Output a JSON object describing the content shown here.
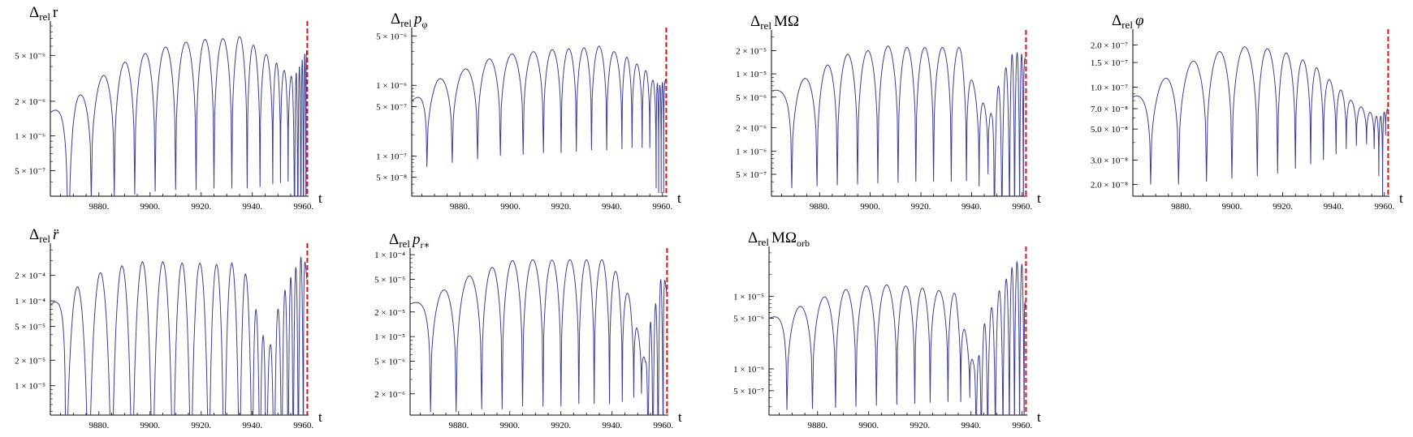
{
  "figure": {
    "x_axis_label": "t",
    "x_tick_labels": [
      "9880.",
      "9900.",
      "9920.",
      "9940.",
      "9960."
    ]
  },
  "colors": {
    "curve": "#3b3f96",
    "merger_line": "#dd1111",
    "axis": "#000000"
  },
  "chart_data": [
    {
      "type": "line",
      "scale": "log",
      "title_prefix": "Δ",
      "title_sub": "rel",
      "title_main": "r",
      "title_main_italic": false,
      "title_main_sub": "",
      "xlabel": "t",
      "xlim": [
        9861,
        9962
      ],
      "ylim": [
        3e-07,
        9e-06
      ],
      "event_t": 9961.5,
      "yticks": [
        {
          "v": 5e-06,
          "label": "5 × 10⁻⁶"
        },
        {
          "v": 2e-06,
          "label": "2 × 10⁻⁶"
        },
        {
          "v": 1e-06,
          "label": "1 × 10⁻⁶"
        },
        {
          "v": 5e-07,
          "label": "5 × 10⁻⁷"
        }
      ],
      "envelope": {
        "peaks": [
          [
            9861,
            1.6e-06
          ],
          [
            9873,
            2.3e-06
          ],
          [
            9882,
            3.4e-06
          ],
          [
            9891,
            4.5e-06
          ],
          [
            9899,
            5.3e-06
          ],
          [
            9907,
            6e-06
          ],
          [
            9915,
            6.6e-06
          ],
          [
            9922,
            6.9e-06
          ],
          [
            9929,
            7e-06
          ],
          [
            9936,
            7.3e-06
          ],
          [
            9941,
            6e-06
          ],
          [
            9946,
            5e-06
          ],
          [
            9950,
            4.2e-06
          ],
          [
            9953,
            3.6e-06
          ],
          [
            9956,
            3.2e-06
          ],
          [
            9958,
            3.8e-06
          ],
          [
            9961,
            5.5e-06
          ]
        ],
        "trough_t": [
          9868,
          9877,
          9886,
          9894,
          9902,
          9910,
          9918,
          9925,
          9932,
          9938,
          9943,
          9948,
          9951,
          9954,
          9956.5,
          9957.8,
          9959,
          9960,
          9961
        ],
        "trough_v": [
          1e-08,
          2.8e-07,
          3e-07,
          3.1e-07,
          3.3e-07,
          3.4e-07,
          3.4e-07,
          3.5e-07,
          3.5e-07,
          3.5e-07,
          3.6e-07,
          3.8e-07,
          3.9e-07,
          4e-07,
          1e-08,
          1e-08,
          1e-08,
          1e-08,
          1e-08
        ]
      }
    },
    {
      "type": "line",
      "scale": "log",
      "title_prefix": "Δ",
      "title_sub": "rel",
      "title_main": "p",
      "title_main_italic": true,
      "title_main_sub": "φ",
      "xlabel": "t",
      "xlim": [
        9861,
        9962
      ],
      "ylim": [
        2.7e-08,
        5.6e-06
      ],
      "event_t": 9961.5,
      "yticks": [
        {
          "v": 5e-06,
          "label": "5 × 10⁻⁶"
        },
        {
          "v": 1e-06,
          "label": "1 × 10⁻⁶"
        },
        {
          "v": 5e-07,
          "label": "5 × 10⁻⁷"
        },
        {
          "v": 1e-07,
          "label": "1 × 10⁻⁷"
        },
        {
          "v": 5e-08,
          "label": "5 × 10⁻⁸"
        }
      ],
      "envelope": {
        "peaks": [
          [
            9861,
            6e-07
          ],
          [
            9871,
            1.2e-06
          ],
          [
            9882,
            1.7e-06
          ],
          [
            9892,
            2.4e-06
          ],
          [
            9901,
            2.8e-06
          ],
          [
            9909,
            3e-06
          ],
          [
            9916,
            3.2e-06
          ],
          [
            9923,
            3.3e-06
          ],
          [
            9929,
            3.4e-06
          ],
          [
            9935,
            3.6e-06
          ],
          [
            9941,
            3e-06
          ],
          [
            9946,
            2.5e-06
          ],
          [
            9950,
            2e-06
          ],
          [
            9953,
            1.7e-06
          ],
          [
            9956,
            1.2e-06
          ],
          [
            9959,
            1e-06
          ],
          [
            9961,
            1.2e-06
          ]
        ],
        "trough_t": [
          9867,
          9877,
          9887,
          9896,
          9905,
          9913,
          9920,
          9926,
          9932,
          9938,
          9944,
          9948,
          9952,
          9955,
          9957.5,
          9958.5,
          9959.5,
          9960.5
        ],
        "trough_v": [
          7e-08,
          8e-08,
          9e-08,
          1e-07,
          1.05e-07,
          1.1e-07,
          1.1e-07,
          1.15e-07,
          1.2e-07,
          1.2e-07,
          1.25e-07,
          1.3e-07,
          1.3e-07,
          1.3e-07,
          3.5e-08,
          3e-08,
          3e-08,
          3e-08
        ]
      }
    },
    {
      "type": "line",
      "scale": "log",
      "title_prefix": "Δ",
      "title_sub": "rel",
      "title_main": "MΩ",
      "title_main_italic": false,
      "title_main_sub": "",
      "xlabel": "t",
      "xlim": [
        9861,
        9962
      ],
      "ylim": [
        2.6e-07,
        3.2e-05
      ],
      "event_t": 9961.5,
      "yticks": [
        {
          "v": 2e-05,
          "label": "2 × 10⁻⁵"
        },
        {
          "v": 1e-05,
          "label": "1 × 10⁻⁵"
        },
        {
          "v": 5e-06,
          "label": "5 × 10⁻⁶"
        },
        {
          "v": 2e-06,
          "label": "2 × 10⁻⁶"
        },
        {
          "v": 1e-06,
          "label": "1 × 10⁻⁶"
        },
        {
          "v": 5e-07,
          "label": "5 × 10⁻⁷"
        }
      ],
      "envelope": {
        "peaks": [
          [
            9861,
            6e-06
          ],
          [
            9866,
            6.5e-06
          ],
          [
            9875,
            9e-06
          ],
          [
            9883,
            1.3e-05
          ],
          [
            9891,
            1.8e-05
          ],
          [
            9899,
            2e-05
          ],
          [
            9907,
            2.3e-05
          ],
          [
            9915,
            2.2e-05
          ],
          [
            9922,
            2.2e-05
          ],
          [
            9929,
            2.2e-05
          ],
          [
            9936,
            2.2e-05
          ],
          [
            9941,
            7e-06
          ],
          [
            9945,
            4e-06
          ],
          [
            9948,
            3e-06
          ],
          [
            9951,
            8e-06
          ],
          [
            9954,
            1.3e-05
          ],
          [
            9956,
            1.8e-05
          ],
          [
            9958,
            1.9e-05
          ],
          [
            9960,
            1.8e-05
          ],
          [
            9961.3,
            1.6e-05
          ]
        ],
        "trough_t": [
          9869,
          9879,
          9887,
          9895,
          9903,
          9911,
          9918,
          9925,
          9932,
          9938,
          9943,
          9946.5,
          9949,
          9952,
          9955,
          9957,
          9959,
          9960.5
        ],
        "trough_v": [
          3.3e-07,
          3.5e-07,
          3.6e-07,
          3.7e-07,
          3.8e-07,
          3.9e-07,
          4e-07,
          4e-07,
          4e-07,
          4.1e-07,
          3.5e-07,
          5e-07,
          1e-08,
          1e-08,
          1e-08,
          1e-08,
          1e-08,
          1e-08
        ]
      }
    },
    {
      "type": "line",
      "scale": "log",
      "title_prefix": "Δ",
      "title_sub": "rel",
      "title_main": "φ",
      "title_main_italic": true,
      "title_main_sub": "",
      "xlabel": "t",
      "xlim": [
        9861,
        9962
      ],
      "ylim": [
        1.65e-08,
        2.4e-07
      ],
      "event_t": 9961.5,
      "yticks": [
        {
          "v": 2e-07,
          "label": "2.0 × 10⁻⁷"
        },
        {
          "v": 1.5e-07,
          "label": "1.5 × 10⁻⁷"
        },
        {
          "v": 1e-07,
          "label": "1.0 × 10⁻⁷"
        },
        {
          "v": 7e-08,
          "label": "7.0 × 10⁻⁸"
        },
        {
          "v": 5e-08,
          "label": "5.0 × 10⁻⁸"
        },
        {
          "v": 3e-08,
          "label": "3.0 × 10⁻⁸"
        },
        {
          "v": 2e-08,
          "label": "2.0 × 10⁻⁸"
        }
      ],
      "envelope": {
        "peaks": [
          [
            9861,
            8.5e-08
          ],
          [
            9865,
            9e-08
          ],
          [
            9875,
            1.2e-07
          ],
          [
            9885,
            1.55e-07
          ],
          [
            9895,
            1.8e-07
          ],
          [
            9905,
            1.95e-07
          ],
          [
            9913,
            1.9e-07
          ],
          [
            9920,
            1.8e-07
          ],
          [
            9927,
            1.6e-07
          ],
          [
            9933,
            1.4e-07
          ],
          [
            9938,
            1.15e-07
          ],
          [
            9943,
            9.5e-08
          ],
          [
            9947,
            8e-08
          ],
          [
            9951,
            7.2e-08
          ],
          [
            9955,
            6.5e-08
          ],
          [
            9958,
            6e-08
          ],
          [
            9961,
            7e-08
          ]
        ],
        "trough_t": [
          9868,
          9879,
          9890,
          9900,
          9910,
          9918,
          9925,
          9931,
          9936,
          9941,
          9945,
          9949,
          9953,
          9956,
          9957.8,
          9959.3,
          9960.5
        ],
        "trough_v": [
          2e-08,
          2e-08,
          2.1e-08,
          2.2e-08,
          2.3e-08,
          2.4e-08,
          2.6e-08,
          2.8e-08,
          3e-08,
          3.3e-08,
          3.6e-08,
          3.8e-08,
          3.9e-08,
          3.6e-08,
          2.3e-08,
          1.5e-08,
          4.5e-08
        ]
      }
    },
    {
      "type": "line",
      "scale": "log",
      "title_prefix": "Δ",
      "title_sub": "rel",
      "title_main": "r̈",
      "title_main_italic": true,
      "title_main_sub": "",
      "xlabel": "t",
      "xlim": [
        9861,
        9962
      ],
      "ylim": [
        4.5e-06,
        0.00042
      ],
      "event_t": 9961.5,
      "yticks": [
        {
          "v": 0.0002,
          "label": "2 × 10⁻⁴"
        },
        {
          "v": 0.0001,
          "label": "1 × 10⁻⁴"
        },
        {
          "v": 5e-05,
          "label": "5 × 10⁻⁵"
        },
        {
          "v": 2e-05,
          "label": "2 × 10⁻⁵"
        },
        {
          "v": 1e-05,
          "label": "1 × 10⁻⁵"
        }
      ],
      "envelope": {
        "peaks": [
          [
            9861,
            9e-05
          ],
          [
            9863,
            0.0001
          ],
          [
            9872,
            0.00015
          ],
          [
            9881,
            0.00022
          ],
          [
            9889,
            0.00026
          ],
          [
            9897,
            0.00029
          ],
          [
            9905,
            0.00029
          ],
          [
            9912,
            0.00028
          ],
          [
            9919,
            0.00028
          ],
          [
            9926,
            0.00027
          ],
          [
            9932,
            0.00028
          ],
          [
            9937,
            0.00023
          ],
          [
            9941,
            9e-05
          ],
          [
            9944,
            4e-05
          ],
          [
            9947,
            3e-05
          ],
          [
            9950,
            8e-05
          ],
          [
            9953,
            0.00014
          ],
          [
            9955,
            0.00019
          ],
          [
            9957,
            0.00025
          ],
          [
            9959,
            0.00033
          ],
          [
            9960.5,
            0.00036
          ],
          [
            9961.3,
            0.00018
          ]
        ],
        "trough_t": [
          9867,
          9876,
          9885,
          9893,
          9901,
          9909,
          9916,
          9923,
          9929,
          9935,
          9940,
          9943,
          9945.5,
          9948.5,
          9951.5,
          9954,
          9956,
          9958,
          9960
        ],
        "trough_v": [
          1e-08,
          1e-08,
          1e-08,
          1e-08,
          1e-08,
          1e-08,
          1e-08,
          1e-08,
          1e-08,
          1e-08,
          1e-08,
          1e-08,
          1e-08,
          1e-08,
          1e-08,
          1e-08,
          1e-08,
          1e-08,
          1e-08
        ]
      }
    },
    {
      "type": "line",
      "scale": "log",
      "title_prefix": "Δ",
      "title_sub": "rel",
      "title_main": "p",
      "title_main_italic": true,
      "title_main_sub": "r∗",
      "xlabel": "t",
      "xlim": [
        9861,
        9962
      ],
      "ylim": [
        1.1e-06,
        0.000105
      ],
      "event_t": 9961.5,
      "yticks": [
        {
          "v": 0.0001,
          "label": "1 × 10⁻⁴"
        },
        {
          "v": 5e-05,
          "label": "5 × 10⁻⁵"
        },
        {
          "v": 2e-05,
          "label": "2 × 10⁻⁵"
        },
        {
          "v": 1e-05,
          "label": "1 × 10⁻⁵"
        },
        {
          "v": 5e-06,
          "label": "5 × 10⁻⁶"
        },
        {
          "v": 2e-06,
          "label": "2 × 10⁻⁶"
        }
      ],
      "envelope": {
        "peaks": [
          [
            9861,
            2.5e-05
          ],
          [
            9864,
            2.7e-05
          ],
          [
            9874,
            3.7e-05
          ],
          [
            9884,
            5.5e-05
          ],
          [
            9893,
            7e-05
          ],
          [
            9901,
            8.5e-05
          ],
          [
            9909,
            8.7e-05
          ],
          [
            9916,
            8.6e-05
          ],
          [
            9923,
            8.7e-05
          ],
          [
            9930,
            8.7e-05
          ],
          [
            9937,
            8.7e-05
          ],
          [
            9942,
            6e-05
          ],
          [
            9947,
            3e-05
          ],
          [
            9950,
            1.2e-05
          ],
          [
            9953,
            5e-06
          ],
          [
            9955,
            1.5e-05
          ],
          [
            9957,
            2.5e-05
          ],
          [
            9959,
            5e-05
          ],
          [
            9960.5,
            6e-05
          ],
          [
            9961.5,
            3e-05
          ]
        ],
        "trough_t": [
          9869,
          9879,
          9889,
          9897,
          9905,
          9913,
          9920,
          9927,
          9933,
          9939,
          9944,
          9948.5,
          9951.5,
          9954,
          9956,
          9958,
          9960
        ],
        "trough_v": [
          1.2e-06,
          1.2e-06,
          1.3e-06,
          1.3e-06,
          1.4e-06,
          1.4e-06,
          1.4e-06,
          1.5e-06,
          1.5e-06,
          1.5e-06,
          1.6e-06,
          1.8e-06,
          2e-06,
          1e-08,
          1e-08,
          1e-08,
          1e-08
        ]
      }
    },
    {
      "type": "line",
      "scale": "log",
      "title_prefix": "Δ",
      "title_sub": "rel",
      "title_main": "MΩ",
      "title_main_italic": false,
      "title_main_sub": "orb",
      "xlabel": "t",
      "xlim": [
        9861,
        9962
      ],
      "ylim": [
        2.3e-07,
        4.2e-05
      ],
      "event_t": 9961.5,
      "yticks": [
        {
          "v": 1e-05,
          "label": "1 × 10⁻⁵"
        },
        {
          "v": 5e-06,
          "label": "5 × 10⁻⁶"
        },
        {
          "v": 1e-06,
          "label": "1 × 10⁻⁶"
        },
        {
          "v": 5e-07,
          "label": "5 × 10⁻⁷"
        }
      ],
      "envelope": {
        "peaks": [
          [
            9861,
            5e-06
          ],
          [
            9864,
            5.5e-06
          ],
          [
            9874,
            7.5e-06
          ],
          [
            9883,
            1e-05
          ],
          [
            9891,
            1.25e-05
          ],
          [
            9899,
            1.4e-05
          ],
          [
            9907,
            1.45e-05
          ],
          [
            9914,
            1.4e-05
          ],
          [
            9921,
            1.3e-05
          ],
          [
            9928,
            1.2e-05
          ],
          [
            9934,
            1.1e-05
          ],
          [
            9938,
            3e-06
          ],
          [
            9941,
            1.2e-06
          ],
          [
            9943,
            1.5e-06
          ],
          [
            9945,
            4e-06
          ],
          [
            9948,
            7e-06
          ],
          [
            9951,
            1.2e-05
          ],
          [
            9954,
            1.8e-05
          ],
          [
            9956,
            2.5e-05
          ],
          [
            9958,
            3e-05
          ],
          [
            9960,
            2.8e-05
          ],
          [
            9961.3,
            7e-06
          ]
        ],
        "trough_t": [
          9868,
          9878,
          9887,
          9895,
          9903,
          9911,
          9918,
          9924,
          9931,
          9936,
          9939.5,
          9942,
          9944,
          9946.5,
          9949.5,
          9952.5,
          9955,
          9957,
          9959,
          9960.8
        ],
        "trough_v": [
          2.7e-07,
          2.8e-07,
          2.9e-07,
          3e-07,
          3.1e-07,
          3.2e-07,
          3.3e-07,
          3.4e-07,
          3.5e-07,
          3.5e-07,
          4e-07,
          1e-08,
          1e-08,
          1e-08,
          1e-08,
          1e-08,
          1e-08,
          1e-08,
          1e-08,
          1e-08
        ]
      }
    }
  ]
}
